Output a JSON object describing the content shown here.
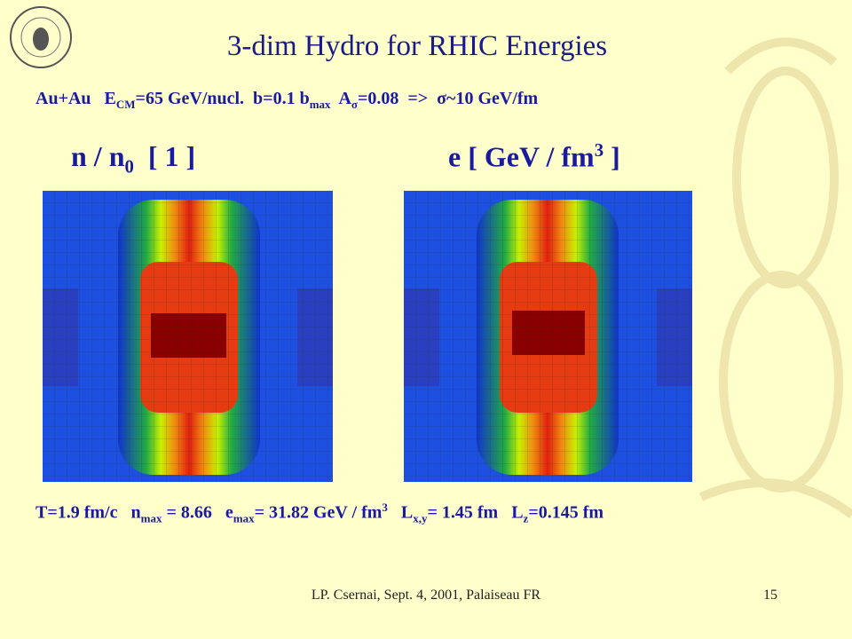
{
  "header": {
    "title": "3-dim Hydro for RHIC Energies"
  },
  "params": [
    {
      "text": "Au+Au   E"
    },
    {
      "sub": "CM"
    },
    {
      "text": "=65 GeV/nucl.  b=0.1 b"
    },
    {
      "sub": "max"
    },
    {
      "text": "  A"
    },
    {
      "sub": "σ"
    },
    {
      "text": "=0.08  =>  σ~10 GeV/fm"
    }
  ],
  "panels": [
    {
      "label": [
        {
          "text": "n / n"
        },
        {
          "sub": "0"
        },
        {
          "text": "  [ 1 ]"
        }
      ]
    },
    {
      "label": [
        {
          "text": "e [ GeV / fm"
        },
        {
          "sup": "3"
        },
        {
          "text": " ]"
        }
      ]
    }
  ],
  "results": [
    {
      "text": "T=1.9 fm/c   n"
    },
    {
      "sub": "max"
    },
    {
      "text": " = 8.66   e"
    },
    {
      "sub": "max"
    },
    {
      "text": "= 31.82 GeV / fm"
    },
    {
      "sup": "3"
    },
    {
      "text": "   L"
    },
    {
      "sub": "x,y"
    },
    {
      "text": "= 1.45 fm   L"
    },
    {
      "sub": "z"
    },
    {
      "text": "=0.145 fm"
    }
  ],
  "footer": {
    "author": "LP. Csernai, Sept. 4, 2001, Palaiseau FR",
    "page": "15"
  }
}
